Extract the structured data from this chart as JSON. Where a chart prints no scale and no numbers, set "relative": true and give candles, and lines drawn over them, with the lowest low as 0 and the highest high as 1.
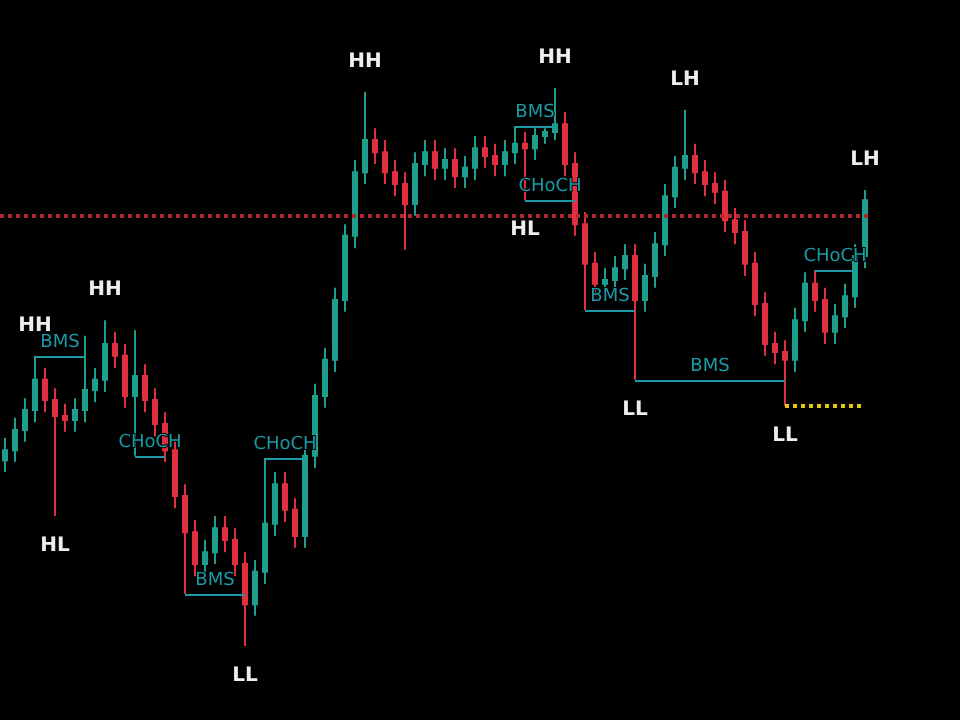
{
  "chart_data": {
    "type": "candlestick",
    "relative": true,
    "tick_labels": false,
    "grid": false,
    "colors": [
      "#1f9e8e",
      "#1f9e8e",
      "#1f9e8e",
      "#1f9e8e",
      "#e0303f",
      "#e0303f",
      "#e0303f",
      "#1f9e8e",
      "#1f9e8e",
      "#1f9e8e",
      "#1f9e8e",
      "#e0303f",
      "#e0303f",
      "#1f9e8e",
      "#e0303f",
      "#e0303f",
      "#e0303f",
      "#e0303f",
      "#e0303f",
      "#e0303f",
      "#1f9e8e",
      "#1f9e8e",
      "#e0303f",
      "#e0303f",
      "#e0303f",
      "#1f9e8e",
      "#1f9e8e",
      "#1f9e8e",
      "#e0303f",
      "#e0303f",
      "#1f9e8e",
      "#1f9e8e",
      "#1f9e8e",
      "#1f9e8e",
      "#1f9e8e",
      "#1f9e8e",
      "#1f9e8e",
      "#e0303f",
      "#e0303f",
      "#e0303f",
      "#e0303f",
      "#1f9e8e",
      "#1f9e8e",
      "#e0303f",
      "#1f9e8e",
      "#e0303f",
      "#1f9e8e",
      "#1f9e8e",
      "#e0303f",
      "#e0303f",
      "#1f9e8e",
      "#1f9e8e",
      "#e0303f",
      "#1f9e8e",
      "#1f9e8e",
      "#1f9e8e",
      "#e0303f",
      "#e0303f",
      "#e0303f",
      "#e0303f",
      "#1f9e8e",
      "#1f9e8e",
      "#1f9e8e",
      "#e0303f",
      "#1f9e8e",
      "#1f9e8e",
      "#1f9e8e",
      "#1f9e8e",
      "#1f9e8e",
      "#e0303f",
      "#e0303f",
      "#e0303f",
      "#e0303f",
      "#e0303f",
      "#e0303f",
      "#e0303f",
      "#e0303f",
      "#e0303f",
      "#e0303f",
      "#1f9e8e",
      "#1f9e8e",
      "#e0303f",
      "#e0303f",
      "#1f9e8e",
      "#1f9e8e",
      "#1f9e8e",
      "#1f9e8e"
    ],
    "categories": [
      null,
      null,
      null,
      null,
      null,
      null,
      null,
      null,
      null,
      null,
      null,
      null,
      null,
      null,
      null,
      null,
      null,
      null,
      null,
      null,
      null,
      null,
      null,
      null,
      null,
      null,
      null,
      null,
      null,
      null,
      null,
      null,
      null,
      null,
      null,
      null,
      null,
      null,
      null,
      null,
      null,
      null,
      null,
      null,
      null,
      null,
      null,
      null,
      null,
      null,
      null,
      null,
      null,
      null,
      null,
      null,
      null,
      null,
      null,
      null,
      null,
      null,
      null,
      null,
      null,
      null,
      null,
      null,
      null,
      null,
      null,
      null,
      null,
      null,
      null,
      null,
      null,
      null,
      null,
      null,
      null,
      null,
      null,
      null,
      null,
      null,
      null
    ],
    "ohlc": [
      [
        0.333,
        0.373,
        0.312,
        0.351
      ],
      [
        0.351,
        0.409,
        0.33,
        0.387
      ],
      [
        0.387,
        0.444,
        0.366,
        0.423
      ],
      [
        0.423,
        0.52,
        0.401,
        0.477
      ],
      [
        0.477,
        0.498,
        0.419,
        0.441
      ],
      [
        0.441,
        0.462,
        0.233,
        0.412
      ],
      [
        0.412,
        0.434,
        0.384,
        0.405
      ],
      [
        0.405,
        0.444,
        0.384,
        0.423
      ],
      [
        0.423,
        0.556,
        0.401,
        0.459
      ],
      [
        0.459,
        0.498,
        0.437,
        0.477
      ],
      [
        0.477,
        0.584,
        0.455,
        0.541
      ],
      [
        0.541,
        0.563,
        0.498,
        0.52
      ],
      [
        0.52,
        0.541,
        0.427,
        0.448
      ],
      [
        0.448,
        0.566,
        0.341,
        0.484
      ],
      [
        0.484,
        0.505,
        0.419,
        0.441
      ],
      [
        0.441,
        0.462,
        0.376,
        0.398
      ],
      [
        0.398,
        0.419,
        0.33,
        0.351
      ],
      [
        0.351,
        0.373,
        0.247,
        0.269
      ],
      [
        0.269,
        0.29,
        0.093,
        0.204
      ],
      [
        0.204,
        0.226,
        0.125,
        0.147
      ],
      [
        0.147,
        0.19,
        0.125,
        0.168
      ],
      [
        0.168,
        0.233,
        0.147,
        0.211
      ],
      [
        0.211,
        0.233,
        0.168,
        0.19
      ],
      [
        0.19,
        0.211,
        0.125,
        0.147
      ],
      [
        0.147,
        0.168,
        0,
        0.075
      ],
      [
        0.075,
        0.154,
        0.054,
        0.133
      ],
      [
        0.133,
        0.337,
        0.111,
        0.219
      ],
      [
        0.219,
        0.312,
        0.197,
        0.29
      ],
      [
        0.29,
        0.312,
        0.222,
        0.244
      ],
      [
        0.244,
        0.265,
        0.176,
        0.197
      ],
      [
        0.197,
        0.362,
        0.176,
        0.341
      ],
      [
        0.341,
        0.47,
        0.319,
        0.448
      ],
      [
        0.448,
        0.534,
        0.427,
        0.513
      ],
      [
        0.513,
        0.642,
        0.491,
        0.62
      ],
      [
        0.62,
        0.756,
        0.599,
        0.735
      ],
      [
        0.735,
        0.871,
        0.713,
        0.849
      ],
      [
        0.849,
        0.993,
        0.828,
        0.907
      ],
      [
        0.907,
        0.928,
        0.864,
        0.885
      ],
      [
        0.885,
        0.907,
        0.828,
        0.849
      ],
      [
        0.849,
        0.871,
        0.806,
        0.828
      ],
      [
        0.828,
        0.849,
        0.71,
        0.792
      ],
      [
        0.792,
        0.885,
        0.771,
        0.864
      ],
      [
        0.864,
        0.907,
        0.842,
        0.885
      ],
      [
        0.885,
        0.907,
        0.835,
        0.857
      ],
      [
        0.857,
        0.892,
        0.835,
        0.871
      ],
      [
        0.871,
        0.892,
        0.821,
        0.842
      ],
      [
        0.842,
        0.878,
        0.821,
        0.857
      ],
      [
        0.857,
        0.914,
        0.835,
        0.892
      ],
      [
        0.892,
        0.914,
        0.857,
        0.878
      ],
      [
        0.878,
        0.9,
        0.842,
        0.864
      ],
      [
        0.864,
        0.907,
        0.842,
        0.885
      ],
      [
        0.885,
        0.932,
        0.864,
        0.9
      ],
      [
        0.9,
        0.921,
        0.799,
        0.892
      ],
      [
        0.892,
        0.928,
        0.871,
        0.914
      ],
      [
        0.914,
        0.928,
        0.9,
        0.921
      ],
      [
        0.921,
        1.0,
        0.907,
        0.935
      ],
      [
        0.935,
        0.957,
        0.842,
        0.864
      ],
      [
        0.864,
        0.885,
        0.735,
        0.756
      ],
      [
        0.756,
        0.778,
        0.602,
        0.685
      ],
      [
        0.685,
        0.706,
        0.627,
        0.649
      ],
      [
        0.649,
        0.677,
        0.627,
        0.656
      ],
      [
        0.656,
        0.699,
        0.634,
        0.677
      ],
      [
        0.677,
        0.72,
        0.656,
        0.699
      ],
      [
        0.699,
        0.72,
        0.477,
        0.62
      ],
      [
        0.62,
        0.685,
        0.599,
        0.663
      ],
      [
        0.663,
        0.742,
        0.642,
        0.72
      ],
      [
        0.72,
        0.828,
        0.699,
        0.806
      ],
      [
        0.806,
        0.878,
        0.785,
        0.857
      ],
      [
        0.857,
        0.961,
        0.835,
        0.878
      ],
      [
        0.878,
        0.9,
        0.828,
        0.849
      ],
      [
        0.849,
        0.871,
        0.806,
        0.828
      ],
      [
        0.828,
        0.849,
        0.792,
        0.814
      ],
      [
        0.814,
        0.835,
        0.742,
        0.763
      ],
      [
        0.763,
        0.785,
        0.72,
        0.742
      ],
      [
        0.742,
        0.763,
        0.663,
        0.685
      ],
      [
        0.685,
        0.706,
        0.591,
        0.613
      ],
      [
        0.613,
        0.634,
        0.52,
        0.541
      ],
      [
        0.541,
        0.563,
        0.505,
        0.527
      ],
      [
        0.527,
        0.548,
        0.43,
        0.513
      ],
      [
        0.513,
        0.606,
        0.491,
        0.584
      ],
      [
        0.584,
        0.67,
        0.563,
        0.649
      ],
      [
        0.649,
        0.674,
        0.599,
        0.62
      ],
      [
        0.62,
        0.642,
        0.541,
        0.563
      ],
      [
        0.563,
        0.613,
        0.541,
        0.591
      ],
      [
        0.591,
        0.649,
        0.57,
        0.627
      ],
      [
        0.627,
        0.72,
        0.606,
        0.699
      ],
      [
        0.699,
        0.817,
        0.677,
        0.799
      ]
    ],
    "ref_lines": [
      {
        "axis": "y",
        "value": 0.774,
        "color": "#b02a30",
        "line_style": "dotted"
      },
      {
        "axis": "y",
        "value": 0.52,
        "label": "BMS",
        "color": "#1b9aa6",
        "line_style": "solid"
      },
      {
        "axis": "y",
        "value": 0.341,
        "label": "CHoCH",
        "color": "#1b9aa6",
        "line_style": "solid"
      },
      {
        "axis": "y",
        "value": 0.093,
        "label": "BMS",
        "color": "#1b9aa6",
        "line_style": "solid"
      },
      {
        "axis": "y",
        "value": 0.337,
        "label": "CHoCH",
        "color": "#1b9aa6",
        "line_style": "solid"
      },
      {
        "axis": "y",
        "value": 0.932,
        "label": "BMS",
        "color": "#1b9aa6",
        "line_style": "solid"
      },
      {
        "axis": "y",
        "value": 0.799,
        "label": "CHoCH",
        "color": "#1b9aa6",
        "line_style": "solid"
      },
      {
        "axis": "y",
        "value": 0.602,
        "label": "BMS",
        "color": "#1b9aa6",
        "line_style": "solid"
      },
      {
        "axis": "y",
        "value": 0.477,
        "label": "BMS",
        "color": "#1b9aa6",
        "line_style": "solid"
      },
      {
        "axis": "y",
        "value": 0.674,
        "label": "CHoCH",
        "color": "#1b9aa6",
        "line_style": "solid"
      },
      {
        "axis": "y",
        "value": 0.43,
        "color": "#e6c619",
        "line_style": "dotted"
      }
    ],
    "annotations": [
      {
        "text": "HH",
        "y": 0.52
      },
      {
        "text": "HL",
        "y": 0.233
      },
      {
        "text": "HH",
        "y": 0.584
      },
      {
        "text": "LL",
        "y": 0
      },
      {
        "text": "HH",
        "y": 0.993
      },
      {
        "text": "HL",
        "y": 0.799
      },
      {
        "text": "HH",
        "y": 1.0
      },
      {
        "text": "LL",
        "y": 0.477
      },
      {
        "text": "LH",
        "y": 0.961
      },
      {
        "text": "LL",
        "y": 0.43
      },
      {
        "text": "LH",
        "y": 0.817
      }
    ]
  }
}
